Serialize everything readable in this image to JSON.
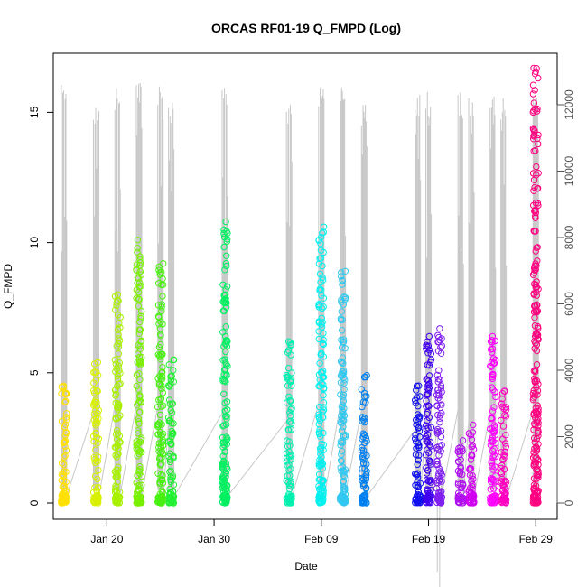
{
  "chart_data": {
    "type": "scatter",
    "title": "ORCAS RF01-19 Q_FMPD (Log)",
    "xlabel": "Date",
    "ylabel": "Q_FMPD",
    "x_ticks": [
      "Jan 20",
      "Jan 30",
      "Feb 09",
      "Feb 19",
      "Feb 29"
    ],
    "y_ticks": [
      "0",
      "5",
      "10",
      "15"
    ],
    "y2_ticks": [
      "0",
      "2000",
      "4000",
      "6000",
      "8000",
      "10000",
      "12000"
    ],
    "xlim": [
      "2016-01-15",
      "2016-03-02"
    ],
    "ylim": [
      0,
      17
    ],
    "y2lim": [
      0,
      13260
    ],
    "grid": false,
    "legend": "none",
    "altitude_color": "#c8c8c8",
    "flights": [
      {
        "date": "2016-01-16",
        "qmax": 4.5,
        "amax": 12600,
        "color": "#ffe000"
      },
      {
        "date": "2016-01-19",
        "qmax": 5.4,
        "amax": 12100,
        "color": "#d8f000"
      },
      {
        "date": "2016-01-21",
        "qmax": 8.0,
        "amax": 12600,
        "color": "#a8f000"
      },
      {
        "date": "2016-01-23",
        "qmax": 10.1,
        "amax": 12900,
        "color": "#78f000"
      },
      {
        "date": "2016-01-25",
        "qmax": 9.2,
        "amax": 12600,
        "color": "#48f010"
      },
      {
        "date": "2016-01-26",
        "qmax": 5.5,
        "amax": 12200,
        "color": "#20f030"
      },
      {
        "date": "2016-01-31",
        "qmax": 10.8,
        "amax": 12700,
        "color": "#00f060"
      },
      {
        "date": "2016-02-06",
        "qmax": 6.2,
        "amax": 12200,
        "color": "#00f0b0"
      },
      {
        "date": "2016-02-09",
        "qmax": 10.6,
        "amax": 12600,
        "color": "#00f0f0"
      },
      {
        "date": "2016-02-11",
        "qmax": 8.9,
        "amax": 12900,
        "color": "#30c8f0"
      },
      {
        "date": "2016-02-13",
        "qmax": 4.9,
        "amax": 12000,
        "color": "#0080f0"
      },
      {
        "date": "2016-02-18",
        "qmax": 4.5,
        "amax": 12400,
        "color": "#1010f0"
      },
      {
        "date": "2016-02-19",
        "qmax": 6.4,
        "amax": 12400,
        "color": "#4000f0"
      },
      {
        "date": "2016-02-20",
        "qmax": 6.7,
        "amax": 1000,
        "color": "#8020f0"
      },
      {
        "date": "2016-02-22",
        "qmax": 2.4,
        "amax": 12400,
        "color": "#b010f0"
      },
      {
        "date": "2016-02-23",
        "qmax": 3.0,
        "amax": 12400,
        "color": "#d000f0"
      },
      {
        "date": "2016-02-25",
        "qmax": 6.4,
        "amax": 12500,
        "color": "#ff00ff"
      },
      {
        "date": "2016-02-26",
        "qmax": 4.3,
        "amax": 12300,
        "color": "#ff00c0"
      },
      {
        "date": "2016-02-29",
        "qmax": 16.7,
        "amax": 12600,
        "color": "#ff0080"
      }
    ]
  }
}
